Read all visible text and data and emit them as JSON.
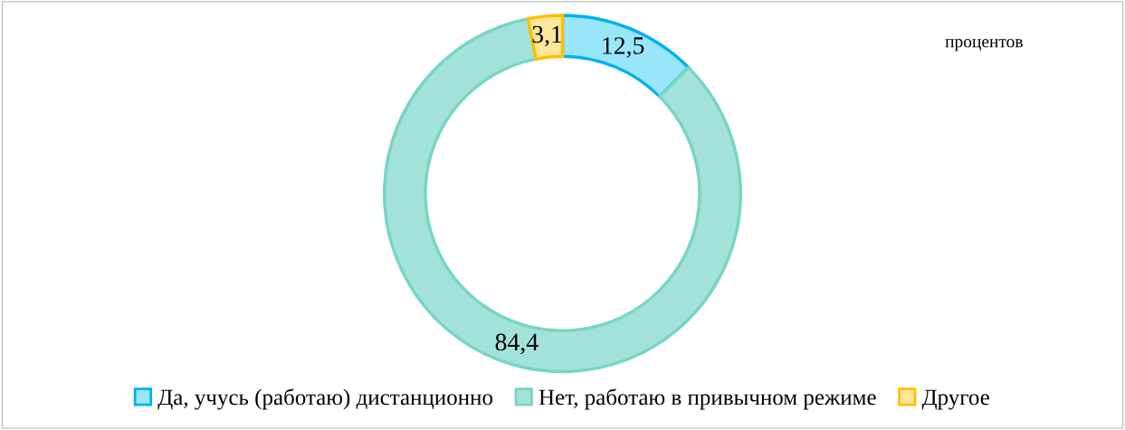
{
  "chart_data": {
    "type": "donut",
    "categories": [
      "Да, учусь (работаю) дистанционно",
      "Нет, работаю в привычном режиме",
      "Другое"
    ],
    "values": [
      12.5,
      84.4,
      3.1
    ],
    "colors": [
      "#99e6fa",
      "#a3e2d9",
      "#ffe699"
    ],
    "value_labels": [
      "12,5",
      "84,4",
      "3,1"
    ],
    "legend": "bottom",
    "annotations": [
      "процентов"
    ]
  }
}
